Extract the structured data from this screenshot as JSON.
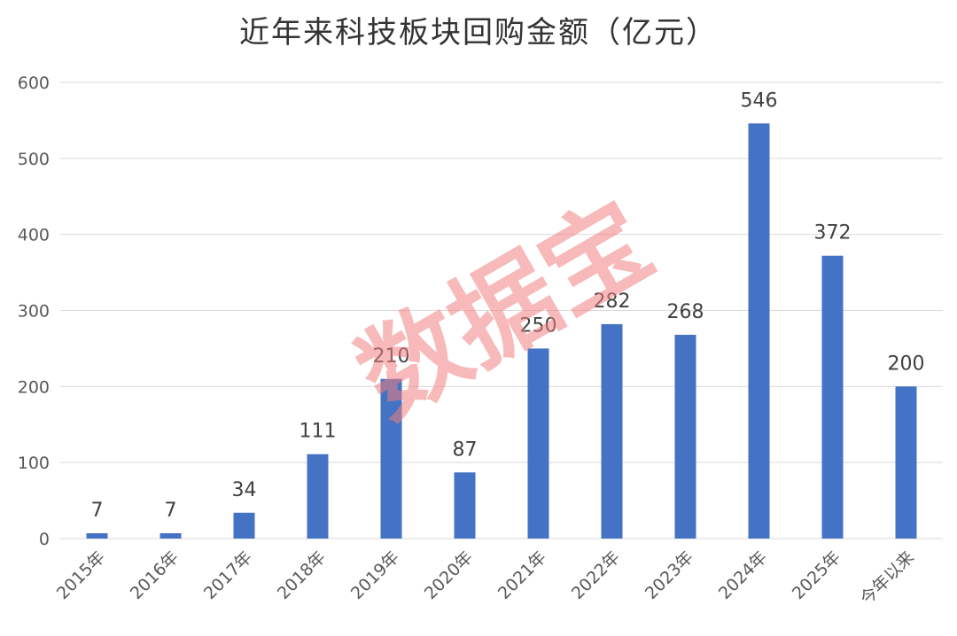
{
  "chart_data": {
    "type": "bar",
    "title": "近年来科技板块回购金额（亿元）",
    "categories": [
      "2015年",
      "2016年",
      "2017年",
      "2018年",
      "2019年",
      "2020年",
      "2021年",
      "2022年",
      "2023年",
      "2024年",
      "2025年",
      "今年以来"
    ],
    "values": [
      7,
      7,
      34,
      111,
      210,
      87,
      250,
      282,
      268,
      546,
      372,
      200
    ],
    "data_labels": [
      "7",
      "7",
      "34",
      "111",
      "210",
      "87",
      "250",
      "282",
      "268",
      "546",
      "372",
      "200"
    ],
    "yticks": [
      "0",
      "100",
      "200",
      "300",
      "400",
      "500",
      "600"
    ],
    "ylim": [
      0,
      600
    ],
    "grid": true,
    "legend": "none",
    "bar_color": "#4472c4",
    "watermark": "数据宝",
    "watermark_color": "#f08080"
  }
}
